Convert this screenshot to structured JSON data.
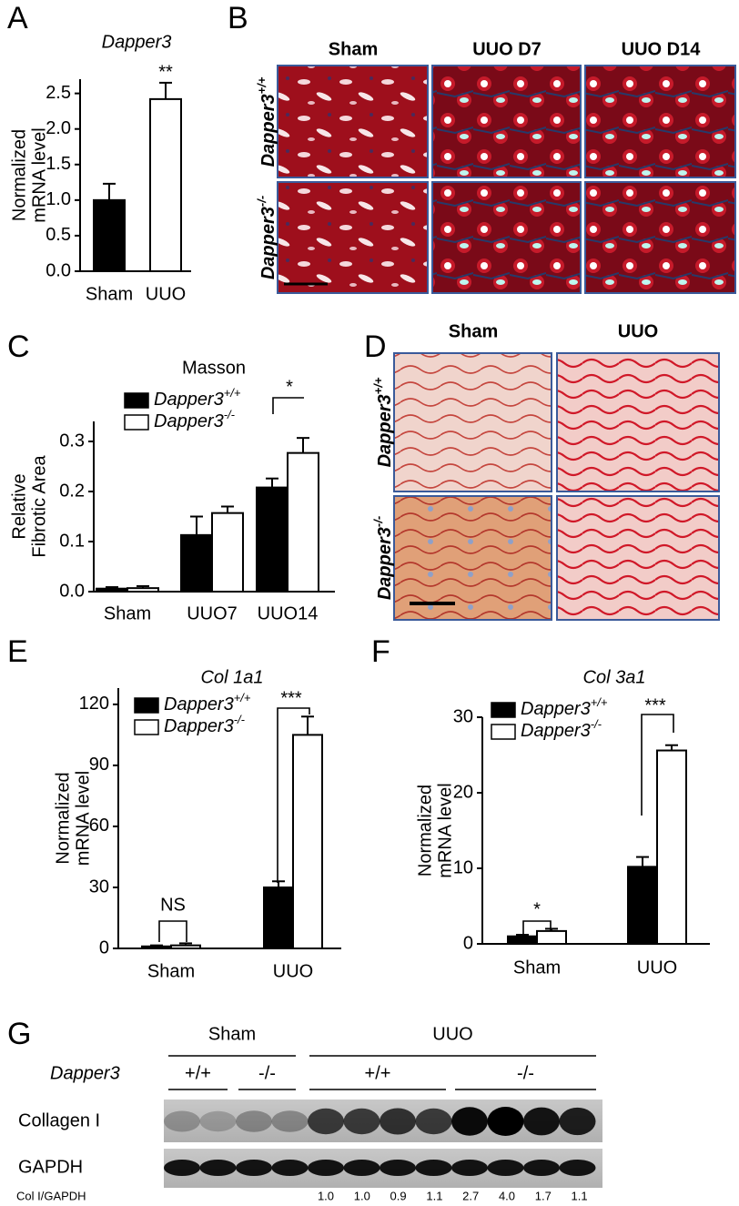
{
  "chart_data": [
    {
      "type": "bar",
      "letter": "A",
      "title": "Dapper3",
      "ylabel": [
        "Normalized",
        "mRNA level"
      ],
      "categories": [
        "Sham",
        "UUO"
      ],
      "series": [
        {
          "color": "#000000",
          "values": [
            1.0,
            2.42
          ],
          "errors": [
            0.23,
            0.23
          ],
          "colors": [
            "#000000",
            "#ffffff"
          ]
        }
      ],
      "ylim": [
        0,
        2.7
      ],
      "yticks": [
        {
          "value": 0,
          "label": "0.0"
        },
        0.5,
        {
          "value": 1,
          "label": "1.0"
        },
        1.5,
        {
          "value": 2,
          "label": "2.0"
        },
        2.5
      ],
      "annotations": [
        "**"
      ]
    },
    {
      "type": "bar",
      "letter": "C",
      "title": "Masson",
      "ylabel": [
        "Relative",
        "Fibrotic Area"
      ],
      "categories": [
        "Sham",
        "UUO7",
        "UUO14"
      ],
      "series": [
        {
          "name": "Dapper3",
          "superscript": "+/+",
          "color": "#000000",
          "values": [
            0.006,
            0.113,
            0.208
          ],
          "errors": [
            0.003,
            0.037,
            0.018
          ]
        },
        {
          "name": "Dapper3",
          "superscript": "-/-",
          "color": "#ffffff",
          "values": [
            0.007,
            0.157,
            0.277
          ],
          "errors": [
            0.004,
            0.013,
            0.03
          ]
        }
      ],
      "ylim": [
        0,
        0.34
      ],
      "yticks": [
        {
          "value": 0,
          "label": "0.0"
        },
        0.1,
        0.2,
        0.3
      ],
      "annotations": [
        "*"
      ]
    },
    {
      "type": "bar",
      "letter": "E",
      "title": "Col 1a1",
      "ylabel": [
        "Normalized",
        "mRNA level"
      ],
      "categories": [
        "Sham",
        "UUO"
      ],
      "series": [
        {
          "name": "Dapper3",
          "superscript": "+/+",
          "color": "#000000",
          "values": [
            1.0,
            30
          ],
          "errors": [
            0.5,
            3
          ]
        },
        {
          "name": "Dapper3",
          "superscript": "-/-",
          "color": "#ffffff",
          "values": [
            1.5,
            105
          ],
          "errors": [
            1,
            9
          ]
        }
      ],
      "ylim": [
        0,
        128
      ],
      "yticks": [
        0,
        30,
        60,
        90,
        120
      ],
      "annotations": [
        "NS",
        "***"
      ]
    },
    {
      "type": "bar",
      "letter": "F",
      "title": "Col 3a1",
      "ylabel": [
        "Normalized",
        "mRNA level"
      ],
      "categories": [
        "Sham",
        "UUO"
      ],
      "series": [
        {
          "name": "Dapper3",
          "superscript": "+/+",
          "color": "#000000",
          "values": [
            1.0,
            10.2
          ],
          "errors": [
            0.2,
            1.3
          ]
        },
        {
          "name": "Dapper3",
          "superscript": "-/-",
          "color": "#ffffff",
          "values": [
            1.7,
            25.6
          ],
          "errors": [
            0.3,
            0.7
          ]
        }
      ],
      "ylim": [
        0,
        30
      ],
      "yticks": [
        0,
        10,
        20,
        30
      ],
      "annotations": [
        "*",
        "***"
      ]
    }
  ],
  "panel_b": {
    "letter": "B",
    "columns": [
      "Sham",
      "UUO D7",
      "UUO D14"
    ],
    "rows": [
      {
        "name": "Dapper3",
        "superscript": "+/+"
      },
      {
        "name": "Dapper3",
        "superscript": "-/-"
      }
    ]
  },
  "panel_d": {
    "letter": "D",
    "columns": [
      "Sham",
      "UUO"
    ],
    "rows": [
      {
        "name": "Dapper3",
        "superscript": "+/+"
      },
      {
        "name": "Dapper3",
        "superscript": "-/-"
      }
    ]
  },
  "panel_g": {
    "letter": "G",
    "groups": [
      "Sham",
      "UUO"
    ],
    "genotype_label": "Dapper3",
    "genotypes": [
      "+/+",
      "-/-",
      "+/+",
      "-/-"
    ],
    "blots": [
      "Collagen I",
      "GAPDH"
    ],
    "ratio_label": "Col I/GAPDH",
    "ratios": [
      "1.0",
      "1.0",
      "0.9",
      "1.1",
      "2.7",
      "4.0",
      "1.7",
      "1.1"
    ]
  }
}
